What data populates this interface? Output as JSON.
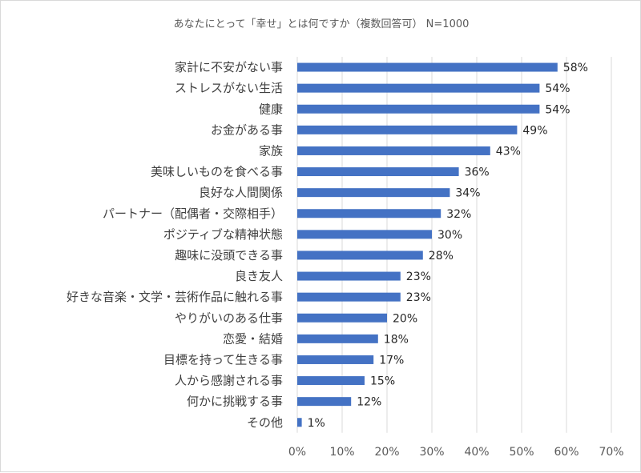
{
  "chart_data": {
    "type": "bar",
    "orientation": "horizontal",
    "title": "あなたにとって「幸せ」とは何ですか（複数回答可） N=1000",
    "categories": [
      "家計に不安がない事",
      "ストレスがない生活",
      "健康",
      "お金がある事",
      "家族",
      "美味しいものを食べる事",
      "良好な人間関係",
      "パートナー（配偶者・交際相手）",
      "ポジティブな精神状態",
      "趣味に没頭できる事",
      "良き友人",
      "好きな音楽・文学・芸術作品に触れる事",
      "やりがいのある仕事",
      "恋愛・結婚",
      "目標を持って生きる事",
      "人から感謝される事",
      "何かに挑戦する事",
      "その他"
    ],
    "values": [
      58,
      54,
      54,
      49,
      43,
      36,
      34,
      32,
      30,
      28,
      23,
      23,
      20,
      18,
      17,
      15,
      12,
      1
    ],
    "value_labels": [
      "58%",
      "54%",
      "54%",
      "49%",
      "43%",
      "36%",
      "34%",
      "32%",
      "30%",
      "28%",
      "23%",
      "23%",
      "20%",
      "18%",
      "17%",
      "15%",
      "12%",
      "1%"
    ],
    "x_ticks": [
      "0%",
      "10%",
      "20%",
      "30%",
      "40%",
      "50%",
      "60%",
      "70%"
    ],
    "xlim": [
      0,
      70
    ],
    "grid": true,
    "legend": "none",
    "bar_color": "#4472c4",
    "grid_color": "#d9d9d9"
  }
}
